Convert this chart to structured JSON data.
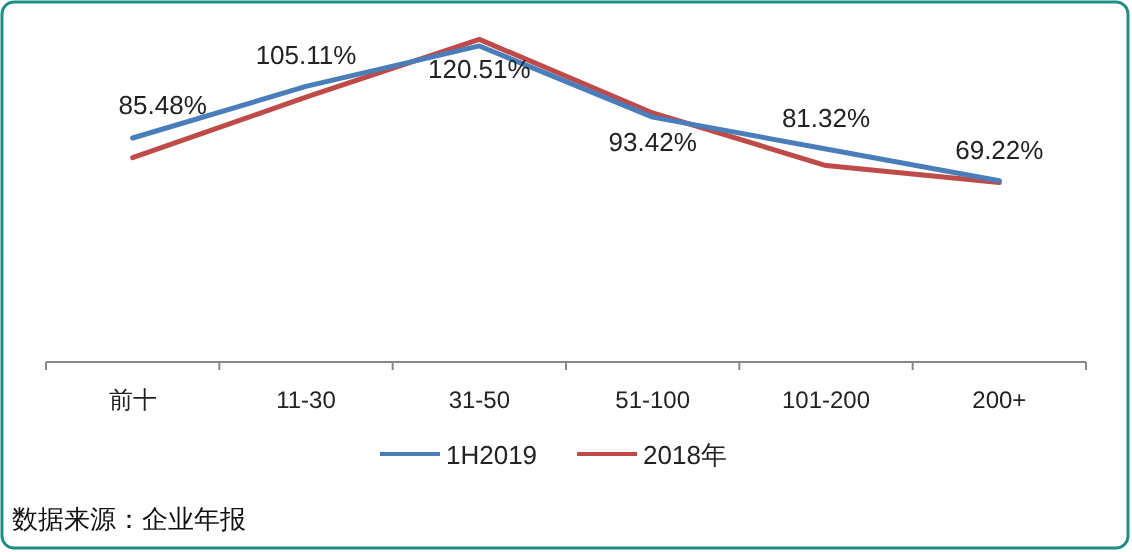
{
  "chart_data": {
    "type": "line",
    "categories": [
      "前十",
      "11-30",
      "31-50",
      "51-100",
      "101-200",
      "200+"
    ],
    "series": [
      {
        "name": "1H2019",
        "color": "#4a7ebb",
        "values": [
          85.48,
          105.11,
          120.51,
          93.42,
          81.32,
          69.22
        ],
        "value_labels": [
          "85.48%",
          "105.11%",
          "120.51%",
          "93.42%",
          "81.32%",
          "69.22%"
        ]
      },
      {
        "name": "2018年",
        "color": "#be4b48",
        "values": [
          78,
          101,
          123,
          95,
          75,
          68.5
        ]
      }
    ],
    "legend": "bottom",
    "marker": "none",
    "line_style": "solid",
    "annotations": [
      "数据来源：企业年报"
    ]
  }
}
